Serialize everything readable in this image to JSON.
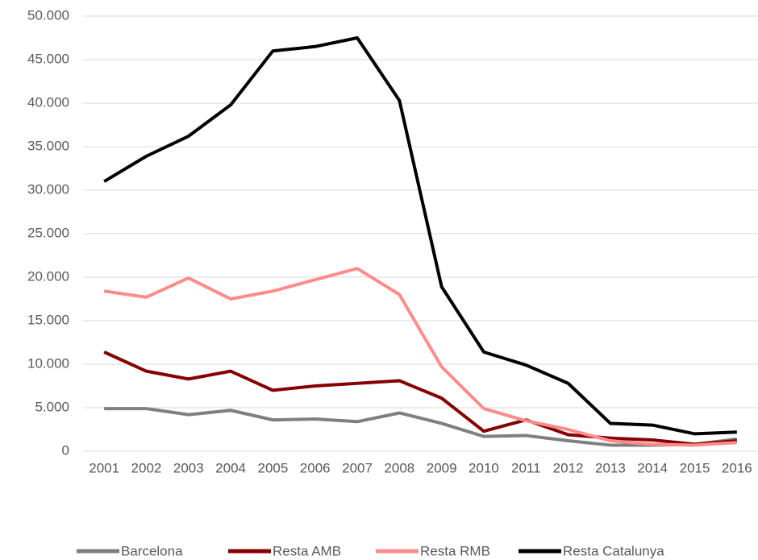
{
  "chart_data": {
    "type": "line",
    "x": [
      "2001",
      "2002",
      "2003",
      "2004",
      "2005",
      "2006",
      "2007",
      "2008",
      "2009",
      "2010",
      "2011",
      "2012",
      "2013",
      "2014",
      "2015",
      "2016"
    ],
    "series": [
      {
        "name": "Barcelona",
        "color": "#7f7f7f",
        "values": [
          4900,
          4900,
          4200,
          4700,
          3600,
          3700,
          3400,
          4400,
          3200,
          1700,
          1800,
          1200,
          700,
          700,
          800,
          1400
        ]
      },
      {
        "name": "Resta AMB",
        "color": "#850000",
        "values": [
          11400,
          9200,
          8300,
          9200,
          7000,
          7500,
          7800,
          8100,
          6100,
          2300,
          3600,
          1900,
          1500,
          1300,
          800,
          1200
        ]
      },
      {
        "name": "Resta RMB",
        "color": "#ff8b8b",
        "values": [
          18400,
          17700,
          19900,
          17500,
          18400,
          19700,
          21000,
          18000,
          9700,
          4900,
          3500,
          2500,
          1200,
          800,
          700,
          1000
        ]
      },
      {
        "name": "Resta Catalunya",
        "color": "#000000",
        "values": [
          31000,
          33900,
          36200,
          39800,
          46000,
          46500,
          47500,
          40300,
          18900,
          11400,
          9900,
          7800,
          3200,
          3000,
          2000,
          2200
        ]
      }
    ],
    "ylim": [
      0,
      50000
    ],
    "yticks": [
      0,
      {
        "value": 5000,
        "label": "5.000"
      },
      {
        "value": 10000,
        "label": "10.000"
      },
      {
        "value": 15000,
        "label": "15.000"
      },
      {
        "value": 20000,
        "label": "20.000"
      },
      {
        "value": 25000,
        "label": "25.000"
      },
      {
        "value": 30000,
        "label": "30.000"
      },
      {
        "value": 35000,
        "label": "35.000"
      },
      {
        "value": 40000,
        "label": "40.000"
      },
      {
        "value": 45000,
        "label": "45.000"
      },
      {
        "value": 50000,
        "label": "50.000"
      }
    ],
    "grid": true,
    "legend": "bottom"
  }
}
